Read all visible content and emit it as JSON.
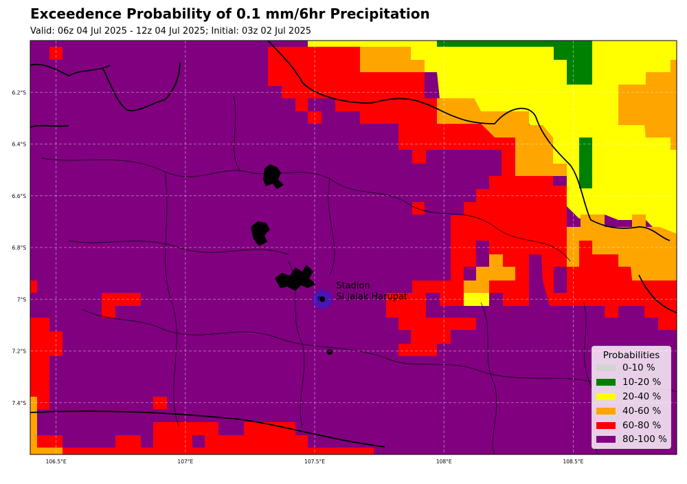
{
  "title": "Exceedence Probability of 0.1 mm/6hr Precipitation",
  "subtitle": "Valid: 06z 04 Jul 2025 - 12z 04 Jul 2025; Initial: 03z 02 Jul 2025",
  "map": {
    "lon_range": [
      106.4,
      108.9
    ],
    "lat_range": [
      -6.0,
      -7.6
    ],
    "lon_ticks": [
      {
        "value": 106.5,
        "label": "106.5°E"
      },
      {
        "value": 107.0,
        "label": "107°E"
      },
      {
        "value": 107.5,
        "label": "107.5°E"
      },
      {
        "value": 108.0,
        "label": "108°E"
      },
      {
        "value": 108.5,
        "label": "108.5°E"
      }
    ],
    "lat_ticks": [
      {
        "value": -6.2,
        "label": "6.2°S"
      },
      {
        "value": -6.4,
        "label": "6.4°S"
      },
      {
        "value": -6.6,
        "label": "6.6°S"
      },
      {
        "value": -6.8,
        "label": "6.8°S"
      },
      {
        "value": -7.0,
        "label": "7°S"
      },
      {
        "value": -7.2,
        "label": "7.2°S"
      },
      {
        "value": -7.4,
        "label": "7.4°S"
      }
    ],
    "gridlines": true,
    "station": {
      "name_line1": "Stadion",
      "name_line2": "Si Jalak Harupat",
      "lon": 107.53,
      "lat": -7.0,
      "color": "#2222dd"
    }
  },
  "legend": {
    "title": "Probabilities",
    "placement": "bottom-right",
    "items": [
      {
        "label": "0-10 %",
        "color": "#d3d3d3"
      },
      {
        "label": "10-20 %",
        "color": "#008000"
      },
      {
        "label": "20-40 %",
        "color": "#ffff00"
      },
      {
        "label": "40-60 %",
        "color": "#ffa500"
      },
      {
        "label": "60-80 %",
        "color": "#ff0000"
      },
      {
        "label": "80-100 %",
        "color": "#800080"
      }
    ]
  },
  "colors": {
    "purple": "#800080",
    "red": "#ff0000",
    "orange": "#ffa500",
    "yellow": "#ffff00",
    "green": "#008000"
  }
}
